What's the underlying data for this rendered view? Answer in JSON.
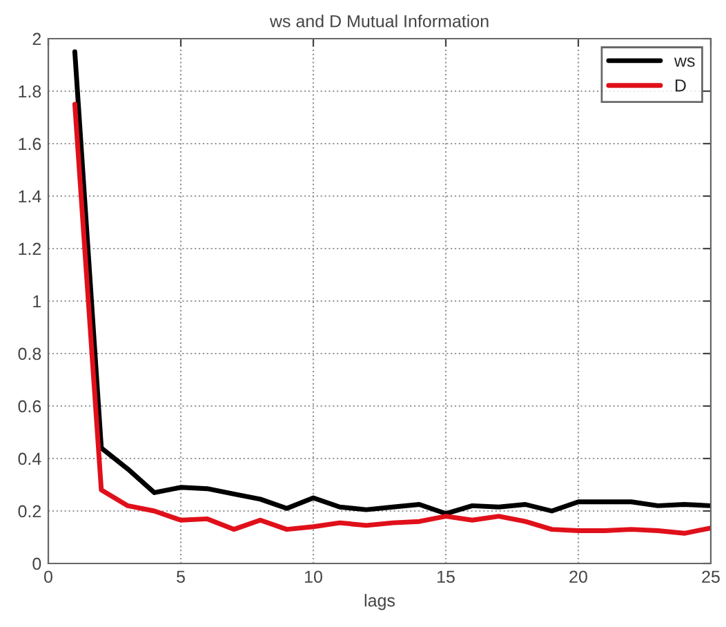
{
  "chart_data": {
    "type": "line",
    "title": "ws and D Mutual Information",
    "xlabel": "lags",
    "x": [
      1,
      2,
      3,
      4,
      5,
      6,
      7,
      8,
      9,
      10,
      11,
      12,
      13,
      14,
      15,
      16,
      17,
      18,
      19,
      20,
      21,
      22,
      23,
      24,
      25
    ],
    "series": [
      {
        "name": "ws",
        "color": "#000000",
        "values": [
          1.95,
          0.44,
          0.36,
          0.27,
          0.29,
          0.285,
          0.265,
          0.245,
          0.21,
          0.25,
          0.215,
          0.205,
          0.215,
          0.225,
          0.19,
          0.22,
          0.215,
          0.225,
          0.2,
          0.235,
          0.235,
          0.235,
          0.22,
          0.225,
          0.22
        ]
      },
      {
        "name": "D",
        "color": "#e0101a",
        "values": [
          1.75,
          0.28,
          0.22,
          0.2,
          0.165,
          0.17,
          0.13,
          0.165,
          0.13,
          0.14,
          0.155,
          0.145,
          0.155,
          0.16,
          0.18,
          0.165,
          0.18,
          0.16,
          0.13,
          0.125,
          0.125,
          0.13,
          0.125,
          0.115,
          0.135
        ]
      }
    ],
    "xlim": [
      0,
      25
    ],
    "xticks": [
      0,
      5,
      10,
      15,
      20,
      25
    ],
    "ylim": [
      0,
      2
    ],
    "yticks": [
      0,
      0.2,
      0.4,
      0.6,
      0.8,
      1,
      1.2,
      1.4,
      1.6,
      1.8,
      2
    ],
    "grid": true,
    "legend": "top right",
    "line_style": "solid"
  }
}
